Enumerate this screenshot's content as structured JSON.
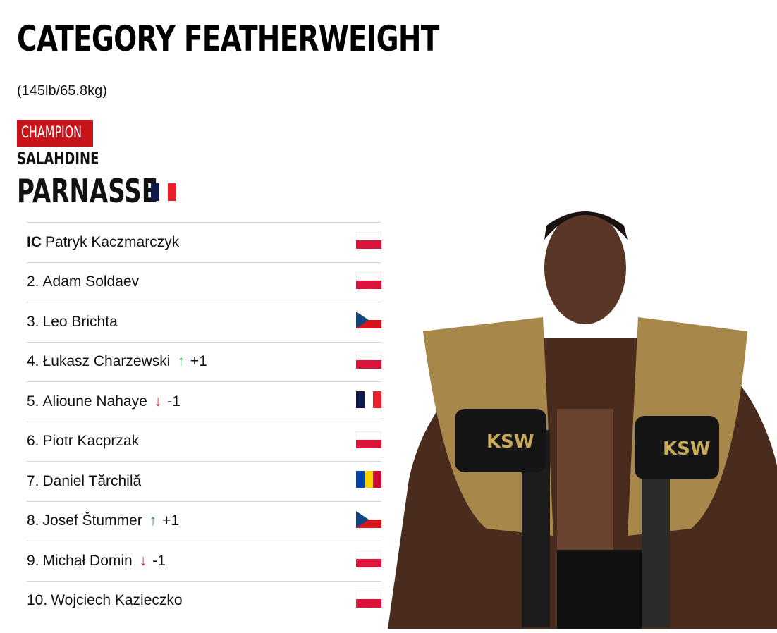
{
  "header": {
    "title": "CATEGORY FEATHERWEIGHT",
    "weight": "(145lb/65.8kg)"
  },
  "champion": {
    "badge": "CHAMPION",
    "first_name": "SALAHDINE",
    "last_name": "PARNASSE",
    "country": "france"
  },
  "rankings": [
    {
      "rank": "IC",
      "name": "Patryk Kaczmarczyk",
      "change": "",
      "direction": "",
      "country": "poland"
    },
    {
      "rank": "2.",
      "name": "Adam Soldaev",
      "change": "",
      "direction": "",
      "country": "poland"
    },
    {
      "rank": "3.",
      "name": "Leo Brichta",
      "change": "",
      "direction": "",
      "country": "czechia"
    },
    {
      "rank": "4.",
      "name": "Łukasz Charzewski",
      "change": "+1",
      "direction": "up",
      "country": "poland"
    },
    {
      "rank": "5.",
      "name": "Alioune Nahaye",
      "change": "-1",
      "direction": "down",
      "country": "france"
    },
    {
      "rank": "6.",
      "name": "Piotr Kacprzak",
      "change": "",
      "direction": "",
      "country": "poland"
    },
    {
      "rank": "7.",
      "name": "Daniel Tărchilă",
      "change": "",
      "direction": "",
      "country": "moldova"
    },
    {
      "rank": "8.",
      "name": "Josef Štummer",
      "change": "+1",
      "direction": "up",
      "country": "czechia"
    },
    {
      "rank": "9.",
      "name": "Michał Domin",
      "change": "-1",
      "direction": "down",
      "country": "poland"
    },
    {
      "rank": "10.",
      "name": "Wojciech Kazieczko",
      "change": "",
      "direction": "",
      "country": "poland"
    }
  ],
  "colors": {
    "accent": "#c8141b",
    "up": "#2a9a3a",
    "down": "#d0262d"
  },
  "photo": {
    "logo_text": "KSW"
  }
}
